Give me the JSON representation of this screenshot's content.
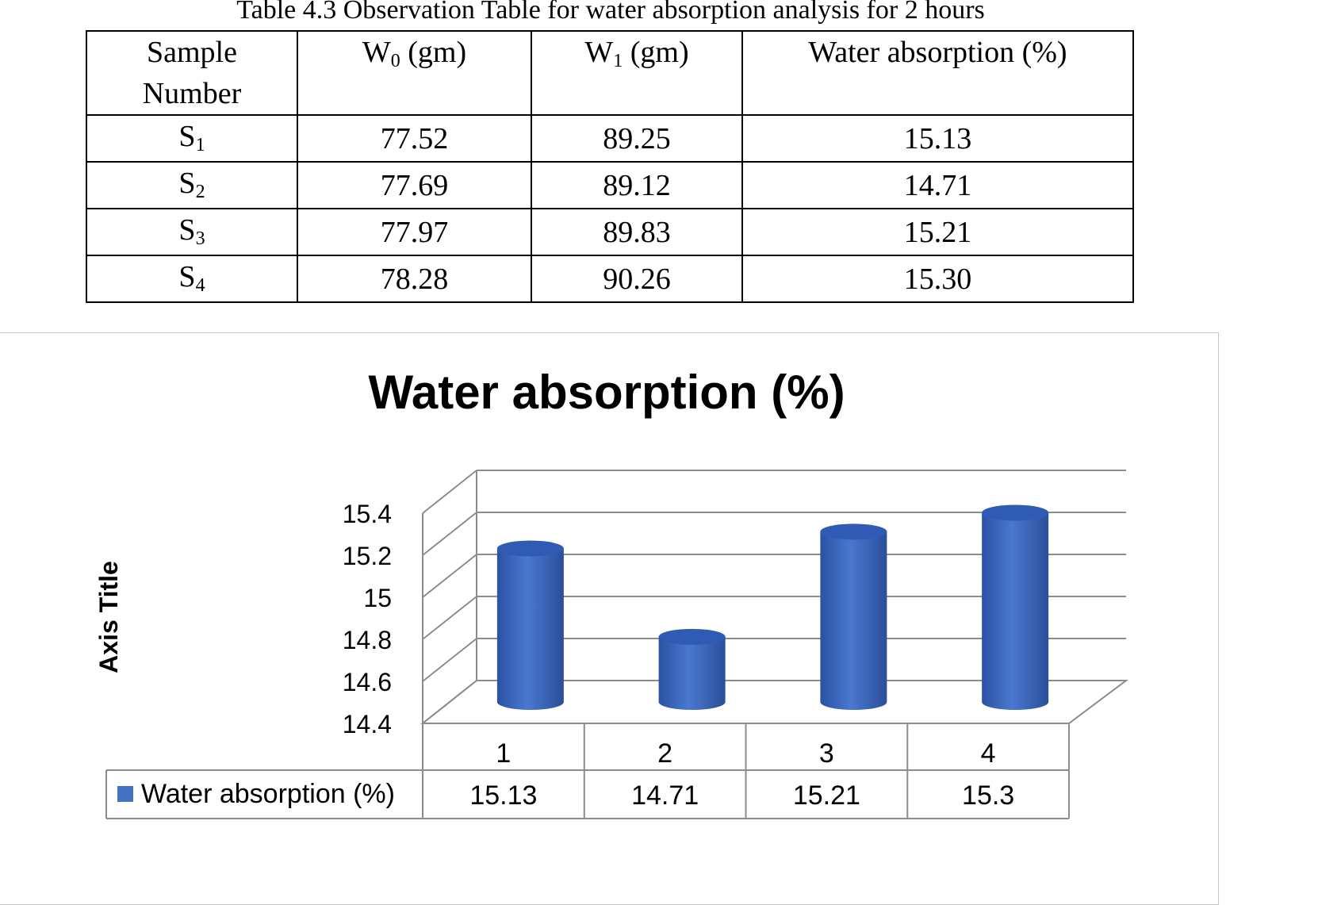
{
  "caption": "Table 4.3 Observation Table for water absorption analysis for 2 hours",
  "table": {
    "headers": [
      {
        "lines": [
          "Sample",
          "Number"
        ]
      },
      {
        "main": "W",
        "sub": "0",
        "tail": " (gm)"
      },
      {
        "main": "W",
        "sub": "1",
        "tail": " (gm)"
      },
      {
        "main": "Water absorption (%)"
      }
    ],
    "rows": [
      {
        "sample": "S",
        "sub": "1",
        "w0": "77.52",
        "w1": "89.25",
        "wa": "15.13"
      },
      {
        "sample": "S",
        "sub": "2",
        "w0": "77.69",
        "w1": "89.12",
        "wa": "14.71"
      },
      {
        "sample": "S",
        "sub": "3",
        "w0": "77.97",
        "w1": "89.83",
        "wa": "15.21"
      },
      {
        "sample": "S",
        "sub": "4",
        "w0": "78.28",
        "w1": "90.26",
        "wa": "15.30"
      }
    ]
  },
  "chart_data": {
    "type": "bar",
    "title": "Water absorption (%)",
    "ylabel": "Axis Title",
    "xlabel": "",
    "categories": [
      "1",
      "2",
      "3",
      "4"
    ],
    "series": [
      {
        "name": "Water absorption (%)",
        "values": [
          15.13,
          14.71,
          15.21,
          15.3
        ],
        "labels": [
          "15.13",
          "14.71",
          "15.21",
          "15.3"
        ],
        "color": "#4472c4"
      }
    ],
    "ylim": [
      14.4,
      15.4
    ],
    "yticks": [
      "14.4",
      "14.6",
      "14.8",
      "15",
      "15.2",
      "15.4"
    ],
    "grid": true,
    "style": "3d-cylinder",
    "data_table": true
  }
}
